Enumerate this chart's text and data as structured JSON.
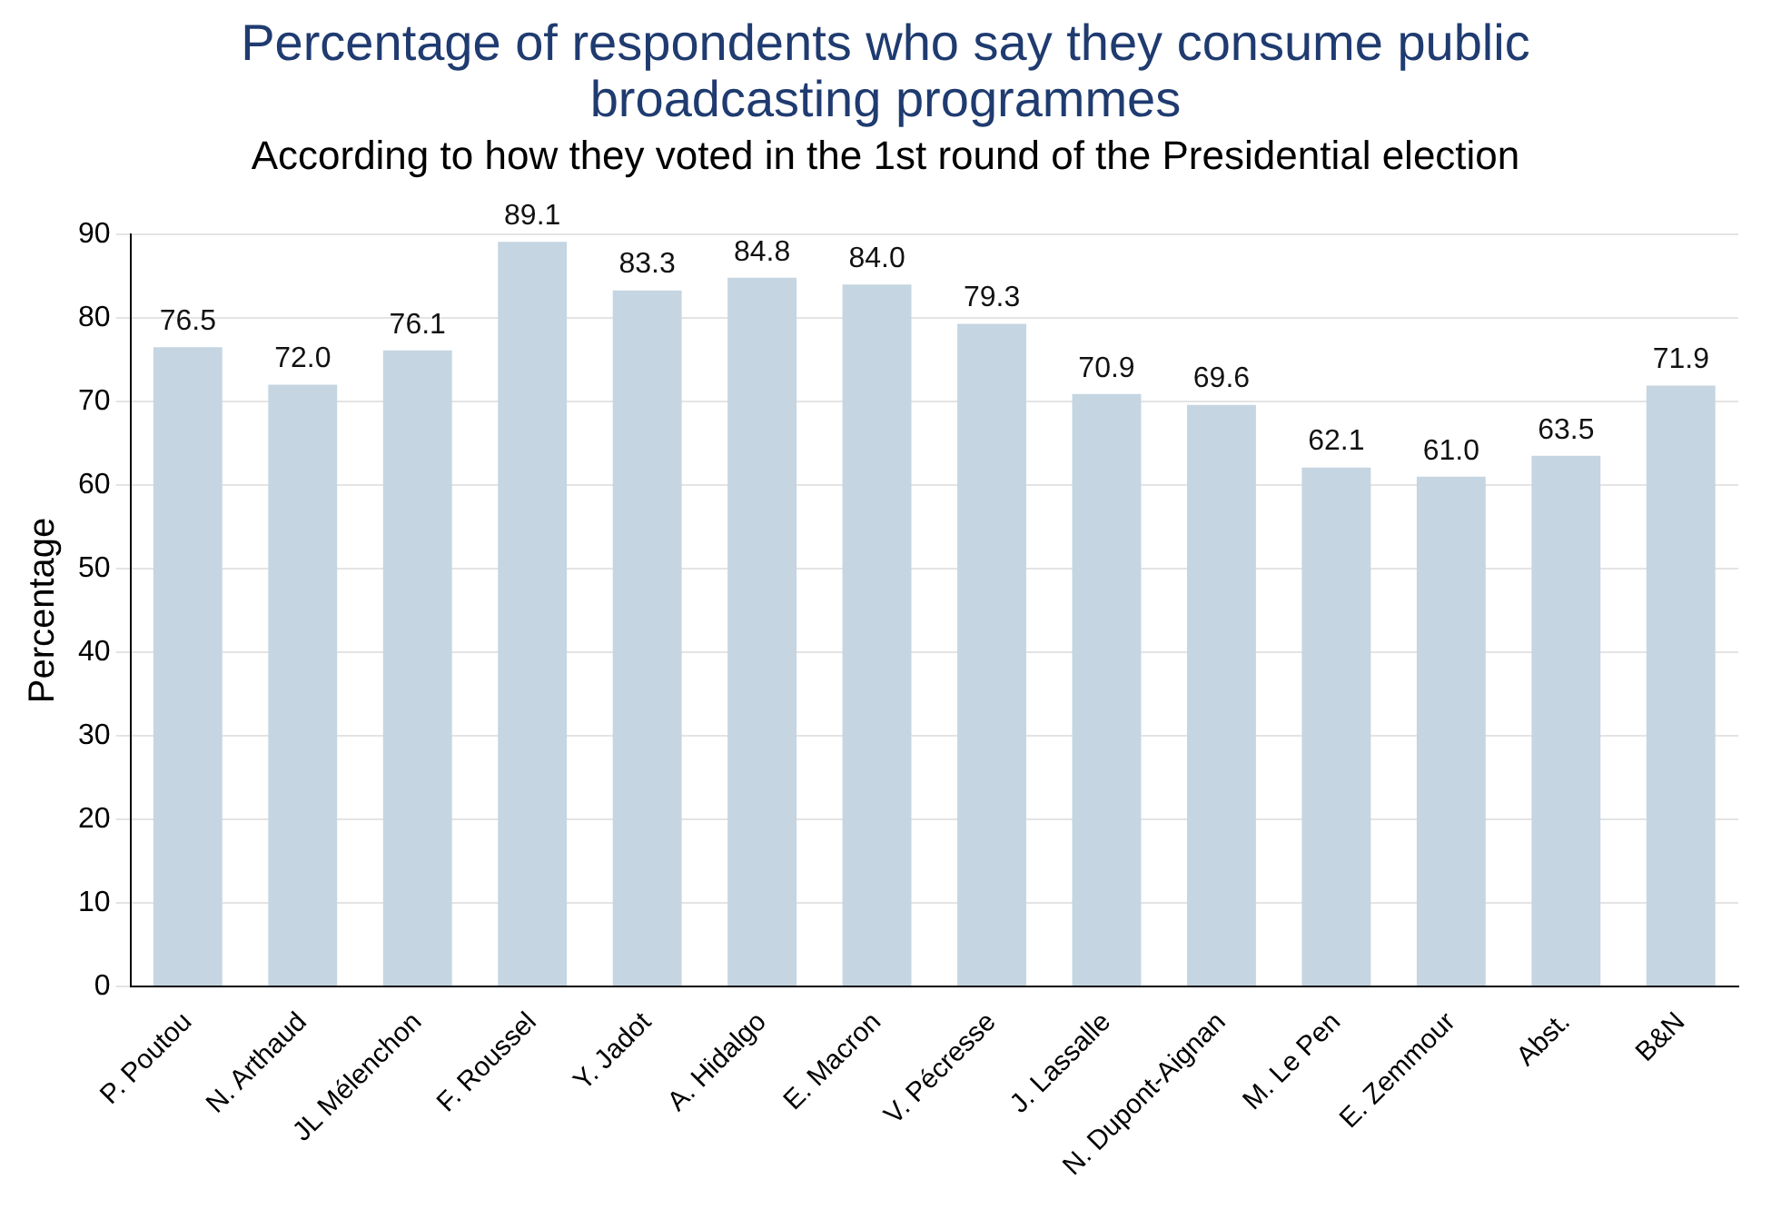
{
  "chart_data": {
    "type": "bar",
    "title": "Percentage of respondents who say they consume public broadcasting programmes",
    "subtitle": "According to how they voted in the 1st round of the Presidential election",
    "ylabel": "Percentage",
    "categories": [
      "P. Poutou",
      "N. Arthaud",
      "JL Mélenchon",
      "F. Roussel",
      "Y. Jadot",
      "A. Hidalgo",
      "E. Macron",
      "V. Pécresse",
      "J. Lassalle",
      "N. Dupont-Aignan",
      "M. Le Pen",
      "E. Zemmour",
      "Abst.",
      "B&N"
    ],
    "values": [
      76.5,
      72.0,
      76.1,
      89.1,
      83.3,
      84.8,
      84.0,
      79.3,
      70.9,
      69.6,
      62.1,
      61.0,
      63.5,
      71.9
    ],
    "value_labels": [
      "76.5",
      "72.0",
      "76.1",
      "89.1",
      "83.3",
      "84.8",
      "84.0",
      "79.3",
      "70.9",
      "69.6",
      "62.1",
      "61.0",
      "63.5",
      "71.9"
    ],
    "color": "#c5d5e1",
    "ylim": [
      0,
      90
    ],
    "yticks": [
      0,
      10,
      20,
      30,
      40,
      50,
      60,
      70,
      80,
      90
    ],
    "grid": "y"
  }
}
